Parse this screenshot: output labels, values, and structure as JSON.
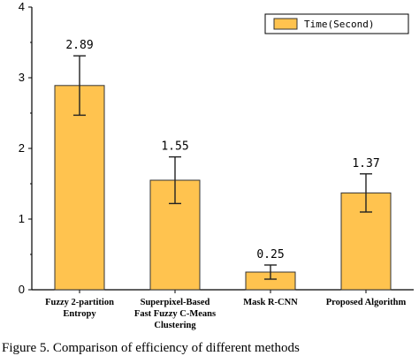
{
  "chart_data": {
    "type": "bar",
    "categories": [
      [
        "Fuzzy 2-partition",
        "Entropy"
      ],
      [
        "Superpixel-Based",
        "Fast Fuzzy C-Means",
        "Clustering"
      ],
      [
        "Mask R-CNN"
      ],
      [
        "Proposed Algorithm"
      ]
    ],
    "series": [
      {
        "name": "Time(Second)",
        "values": [
          2.89,
          1.55,
          0.25,
          1.37
        ],
        "errors": [
          0.42,
          0.33,
          0.1,
          0.27
        ],
        "value_labels": [
          "2.89",
          "1.55",
          "0.25",
          "1.37"
        ]
      }
    ],
    "ylim": [
      0,
      4
    ],
    "yticks": [
      "0",
      "1",
      "2",
      "3",
      "4"
    ],
    "xlabel": "",
    "ylabel": "",
    "legend_position": "top-right",
    "grid": false,
    "colors": {
      "bar_fill": "#FFC34F",
      "bar_stroke": "#333333",
      "axis": "#000000"
    }
  },
  "caption": "Figure 5. Comparison of efficiency of different methods"
}
